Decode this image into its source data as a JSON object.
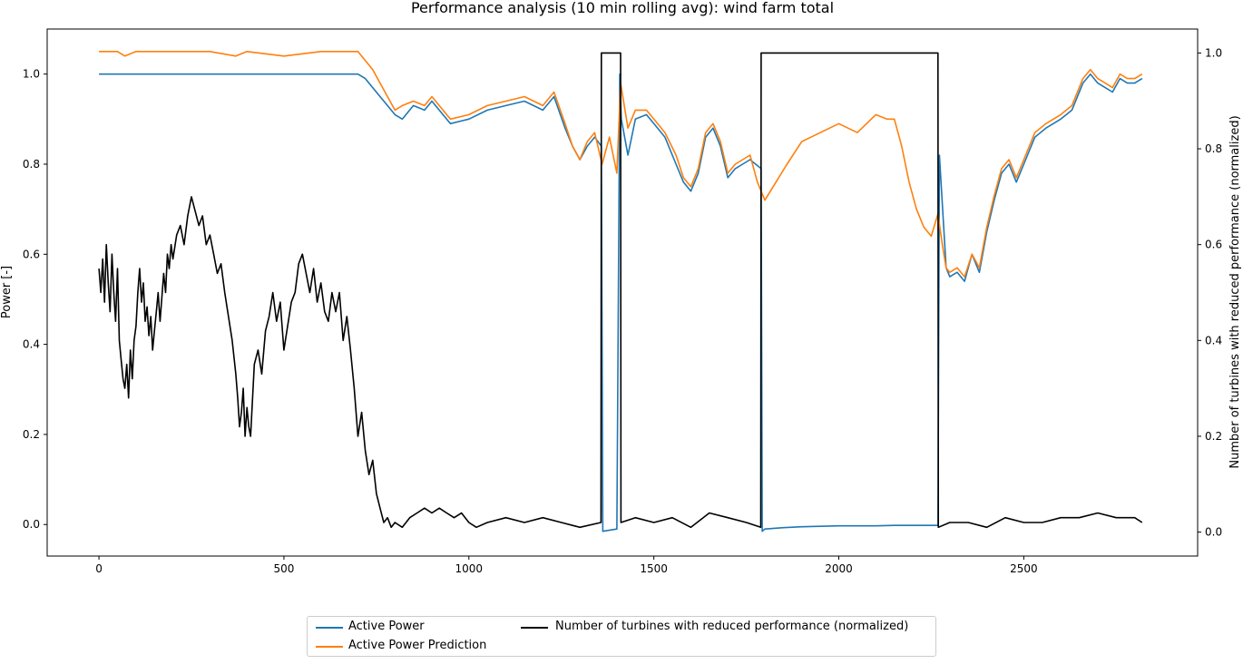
{
  "chart_data": {
    "type": "line",
    "title": "Performance analysis (10 min rolling avg): wind farm total",
    "xlabel": "",
    "ylabel": "Power [-]",
    "y2label": "Number of turbines with reduced performance (normalized)",
    "xlim": [
      -140,
      2970
    ],
    "ylim": [
      -0.07,
      1.1
    ],
    "y2lim": [
      -0.05,
      1.05
    ],
    "x_ticks": [
      0,
      500,
      1000,
      1500,
      2000,
      2500
    ],
    "y_ticks": [
      0.0,
      0.2,
      0.4,
      0.6,
      0.8,
      1.0
    ],
    "y2_ticks": [
      0.0,
      0.2,
      0.4,
      0.6,
      0.8,
      1.0
    ],
    "x_tick_labels": [
      "0",
      "500",
      "1000",
      "1500",
      "2000",
      "2500"
    ],
    "y_tick_labels": [
      "0.0",
      "0.2",
      "0.4",
      "0.6",
      "0.8",
      "1.0"
    ],
    "y2_tick_labels": [
      "0.0",
      "0.2",
      "0.4",
      "0.6",
      "0.8",
      "1.0"
    ],
    "grid": false,
    "legend_placement": "bottom-center",
    "series": [
      {
        "name": "Active Power",
        "color": "#1f77b4",
        "axis": "left",
        "x": [
          0,
          50,
          100,
          200,
          300,
          400,
          500,
          600,
          700,
          720,
          740,
          760,
          780,
          800,
          820,
          850,
          880,
          900,
          950,
          1000,
          1050,
          1100,
          1150,
          1200,
          1230,
          1260,
          1280,
          1300,
          1320,
          1340,
          1358,
          1362,
          1400,
          1408,
          1412,
          1430,
          1450,
          1480,
          1500,
          1530,
          1560,
          1580,
          1600,
          1620,
          1640,
          1660,
          1680,
          1700,
          1720,
          1740,
          1760,
          1790,
          1793,
          1800,
          1850,
          1900,
          1950,
          2000,
          2050,
          2100,
          2150,
          2180,
          2200,
          2220,
          2240,
          2260,
          2268,
          2272,
          2290,
          2300,
          2320,
          2340,
          2360,
          2380,
          2400,
          2420,
          2440,
          2460,
          2480,
          2500,
          2530,
          2560,
          2600,
          2630,
          2660,
          2680,
          2700,
          2720,
          2740,
          2760,
          2780,
          2800,
          2820
        ],
        "y": [
          1.0,
          1.0,
          1.0,
          1.0,
          1.0,
          1.0,
          1.0,
          1.0,
          1.0,
          0.99,
          0.97,
          0.95,
          0.93,
          0.91,
          0.9,
          0.93,
          0.92,
          0.94,
          0.89,
          0.9,
          0.92,
          0.93,
          0.94,
          0.92,
          0.95,
          0.88,
          0.84,
          0.81,
          0.84,
          0.86,
          0.84,
          -0.015,
          -0.01,
          1.0,
          0.9,
          0.82,
          0.9,
          0.91,
          0.89,
          0.86,
          0.8,
          0.76,
          0.74,
          0.78,
          0.86,
          0.88,
          0.84,
          0.77,
          0.79,
          0.8,
          0.81,
          0.79,
          -0.015,
          -0.01,
          -0.007,
          -0.005,
          -0.004,
          -0.003,
          -0.003,
          -0.003,
          -0.002,
          -0.002,
          -0.002,
          -0.002,
          -0.002,
          -0.002,
          -0.002,
          0.82,
          0.57,
          0.55,
          0.56,
          0.54,
          0.6,
          0.56,
          0.65,
          0.72,
          0.78,
          0.8,
          0.76,
          0.8,
          0.86,
          0.88,
          0.9,
          0.92,
          0.98,
          1.0,
          0.98,
          0.97,
          0.96,
          0.99,
          0.98,
          0.98,
          0.99
        ]
      },
      {
        "name": "Active Power Prediction",
        "color": "#ff7f0e",
        "axis": "left",
        "x": [
          0,
          50,
          70,
          100,
          200,
          300,
          370,
          400,
          500,
          600,
          700,
          720,
          740,
          760,
          780,
          800,
          820,
          850,
          880,
          900,
          950,
          1000,
          1050,
          1100,
          1150,
          1200,
          1230,
          1260,
          1280,
          1300,
          1320,
          1340,
          1360,
          1380,
          1400,
          1410,
          1430,
          1450,
          1480,
          1500,
          1530,
          1560,
          1580,
          1600,
          1620,
          1640,
          1660,
          1680,
          1700,
          1720,
          1740,
          1760,
          1780,
          1800,
          1830,
          1860,
          1900,
          1950,
          2000,
          2050,
          2100,
          2130,
          2150,
          2170,
          2190,
          2210,
          2230,
          2250,
          2268,
          2280,
          2290,
          2300,
          2320,
          2340,
          2360,
          2380,
          2400,
          2420,
          2440,
          2460,
          2480,
          2500,
          2530,
          2560,
          2600,
          2630,
          2660,
          2680,
          2700,
          2720,
          2740,
          2760,
          2780,
          2800,
          2820
        ],
        "y": [
          1.05,
          1.05,
          1.04,
          1.05,
          1.05,
          1.05,
          1.04,
          1.05,
          1.04,
          1.05,
          1.05,
          1.03,
          1.01,
          0.98,
          0.95,
          0.92,
          0.93,
          0.94,
          0.93,
          0.95,
          0.9,
          0.91,
          0.93,
          0.94,
          0.95,
          0.93,
          0.96,
          0.89,
          0.84,
          0.81,
          0.85,
          0.87,
          0.8,
          0.86,
          0.78,
          0.98,
          0.88,
          0.92,
          0.92,
          0.9,
          0.87,
          0.82,
          0.77,
          0.75,
          0.79,
          0.87,
          0.89,
          0.85,
          0.78,
          0.8,
          0.81,
          0.82,
          0.76,
          0.72,
          0.76,
          0.8,
          0.85,
          0.87,
          0.89,
          0.87,
          0.91,
          0.9,
          0.9,
          0.84,
          0.76,
          0.7,
          0.66,
          0.64,
          0.69,
          0.62,
          0.57,
          0.56,
          0.57,
          0.55,
          0.6,
          0.57,
          0.66,
          0.73,
          0.79,
          0.81,
          0.77,
          0.81,
          0.87,
          0.89,
          0.91,
          0.93,
          0.99,
          1.01,
          0.99,
          0.98,
          0.97,
          1.0,
          0.99,
          0.99,
          1.0
        ]
      },
      {
        "name": "Number of turbines with reduced performance (normalized)",
        "color": "#000000",
        "axis": "right",
        "x": [
          0,
          5,
          10,
          15,
          20,
          25,
          30,
          35,
          40,
          45,
          50,
          55,
          60,
          65,
          70,
          75,
          80,
          85,
          90,
          95,
          100,
          105,
          110,
          115,
          120,
          125,
          130,
          135,
          140,
          145,
          150,
          155,
          160,
          165,
          170,
          175,
          180,
          185,
          190,
          195,
          200,
          210,
          220,
          230,
          240,
          250,
          260,
          270,
          280,
          290,
          300,
          310,
          320,
          330,
          340,
          350,
          360,
          370,
          375,
          380,
          385,
          390,
          395,
          400,
          405,
          410,
          420,
          430,
          440,
          450,
          460,
          470,
          480,
          490,
          500,
          510,
          520,
          530,
          540,
          550,
          560,
          570,
          580,
          590,
          600,
          610,
          620,
          630,
          640,
          650,
          660,
          670,
          680,
          690,
          700,
          710,
          720,
          730,
          740,
          750,
          760,
          770,
          780,
          790,
          800,
          820,
          840,
          860,
          880,
          900,
          920,
          940,
          960,
          980,
          1000,
          1020,
          1050,
          1100,
          1150,
          1200,
          1250,
          1300,
          1357,
          1358,
          1410,
          1411,
          1450,
          1500,
          1550,
          1600,
          1650,
          1700,
          1750,
          1789,
          1790,
          2268,
          2269,
          2300,
          2350,
          2400,
          2450,
          2500,
          2550,
          2600,
          2650,
          2700,
          2750,
          2800,
          2820
        ],
        "y": [
          0.55,
          0.5,
          0.57,
          0.48,
          0.6,
          0.52,
          0.46,
          0.58,
          0.5,
          0.44,
          0.55,
          0.4,
          0.36,
          0.32,
          0.3,
          0.35,
          0.28,
          0.38,
          0.32,
          0.4,
          0.43,
          0.5,
          0.55,
          0.48,
          0.52,
          0.44,
          0.47,
          0.41,
          0.45,
          0.38,
          0.42,
          0.46,
          0.5,
          0.44,
          0.49,
          0.54,
          0.5,
          0.58,
          0.55,
          0.6,
          0.57,
          0.62,
          0.64,
          0.6,
          0.66,
          0.7,
          0.67,
          0.64,
          0.66,
          0.6,
          0.62,
          0.58,
          0.54,
          0.56,
          0.5,
          0.45,
          0.4,
          0.33,
          0.28,
          0.22,
          0.25,
          0.3,
          0.2,
          0.26,
          0.22,
          0.2,
          0.35,
          0.38,
          0.33,
          0.42,
          0.45,
          0.5,
          0.44,
          0.48,
          0.38,
          0.43,
          0.48,
          0.5,
          0.56,
          0.58,
          0.54,
          0.5,
          0.55,
          0.48,
          0.52,
          0.46,
          0.44,
          0.5,
          0.46,
          0.5,
          0.4,
          0.45,
          0.38,
          0.3,
          0.2,
          0.25,
          0.17,
          0.12,
          0.15,
          0.08,
          0.05,
          0.02,
          0.03,
          0.01,
          0.02,
          0.01,
          0.03,
          0.04,
          0.05,
          0.04,
          0.05,
          0.04,
          0.03,
          0.04,
          0.02,
          0.01,
          0.02,
          0.03,
          0.02,
          0.03,
          0.02,
          0.01,
          0.02,
          1.0,
          1.0,
          0.02,
          0.03,
          0.02,
          0.03,
          0.01,
          0.04,
          0.03,
          0.02,
          0.01,
          1.0,
          1.0,
          0.01,
          0.02,
          0.02,
          0.01,
          0.03,
          0.02,
          0.02,
          0.03,
          0.03,
          0.04,
          0.03,
          0.03,
          0.02
        ]
      }
    ]
  }
}
